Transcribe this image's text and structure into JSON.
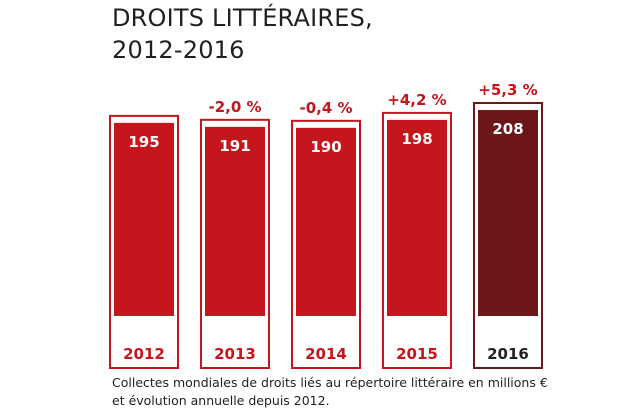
{
  "header": {
    "title_line1": "DROITS LITTÉRAIRES,",
    "title_line2": "2012-2016"
  },
  "caption": {
    "line1": "Collectes mondiales de droits liés au répertoire littéraire en millions €",
    "line2": "et évolution annuelle depuis 2012."
  },
  "colors": {
    "bar": "#c4161c",
    "bar_highlight": "#6b1719",
    "change_text": "#c4161c",
    "value_text": "#ffffff",
    "year_text": "#c4161c",
    "year_text_highlight": "#231f20"
  },
  "chart_data": {
    "type": "bar",
    "title": "DROITS LITTÉRAIRES, 2012-2016",
    "categories": [
      "2012",
      "2013",
      "2014",
      "2015",
      "2016"
    ],
    "values": [
      195,
      191,
      190,
      198,
      208
    ],
    "value_labels": [
      "195",
      "191",
      "190",
      "198",
      "208"
    ],
    "change_labels": [
      "",
      "-2,0 %",
      "-0,4 %",
      "+4,2 %",
      "+5,3 %"
    ],
    "highlight_index": 4,
    "ylim": [
      0,
      230
    ],
    "grid": false,
    "legend": "none"
  }
}
